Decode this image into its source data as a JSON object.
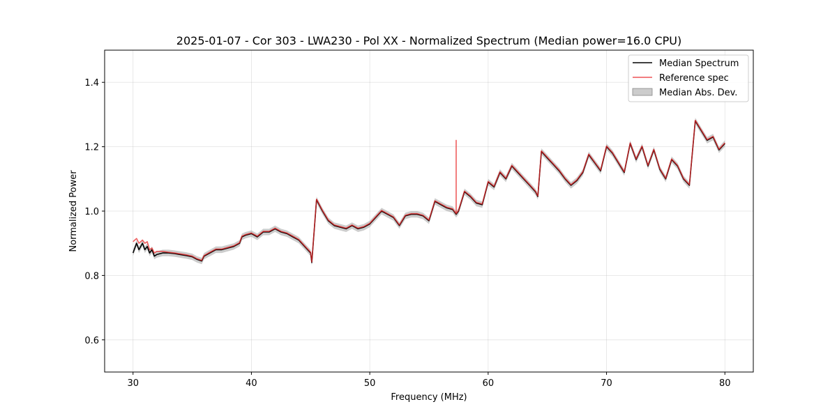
{
  "chart_data": {
    "type": "line",
    "title": "2025-01-07 - Cor 303 - LWA230 - Pol XX - Normalized Spectrum (Median power=16.0 CPU)",
    "xlabel": "Frequency (MHz)",
    "ylabel": "Normalized Power",
    "xlim": [
      27.6,
      82.4
    ],
    "ylim": [
      0.5,
      1.5
    ],
    "xticks": [
      30,
      40,
      50,
      60,
      70,
      80
    ],
    "xtick_labels": [
      "30",
      "40",
      "50",
      "60",
      "70",
      "80"
    ],
    "yticks": [
      0.6,
      0.8,
      1.0,
      1.2,
      1.4
    ],
    "ytick_labels": [
      "0.6",
      "0.8",
      "1.0",
      "1.2",
      "1.4"
    ],
    "grid": true,
    "legend_position": "top-right",
    "mad_band": 0.01,
    "series": [
      {
        "name": "Median Spectrum",
        "color": "#000000",
        "x": [
          30.0,
          30.3,
          30.5,
          30.8,
          31.0,
          31.2,
          31.4,
          31.6,
          31.8,
          32.0,
          32.5,
          33.0,
          33.5,
          34.0,
          34.5,
          35.0,
          35.4,
          35.8,
          36.0,
          36.5,
          37.0,
          37.5,
          38.0,
          38.5,
          39.0,
          39.2,
          39.5,
          40.0,
          40.5,
          41.0,
          41.5,
          42.0,
          42.5,
          43.0,
          43.5,
          44.0,
          44.5,
          45.0,
          45.1,
          45.5,
          46.0,
          46.5,
          47.0,
          47.5,
          48.0,
          48.5,
          49.0,
          49.5,
          50.0,
          50.5,
          51.0,
          51.5,
          52.0,
          52.5,
          53.0,
          53.5,
          54.0,
          54.5,
          55.0,
          55.5,
          56.0,
          56.5,
          57.0,
          57.3,
          57.5,
          58.0,
          58.5,
          59.0,
          59.5,
          60.0,
          60.5,
          61.0,
          61.5,
          62.0,
          62.5,
          63.0,
          63.5,
          64.0,
          64.2,
          64.5,
          65.0,
          65.5,
          66.0,
          66.5,
          67.0,
          67.5,
          68.0,
          68.5,
          69.0,
          69.5,
          70.0,
          70.5,
          71.0,
          71.5,
          72.0,
          72.5,
          73.0,
          73.5,
          74.0,
          74.5,
          75.0,
          75.5,
          76.0,
          76.5,
          77.0,
          77.5,
          78.0,
          78.5,
          79.0,
          79.5,
          80.0
        ],
        "values": [
          0.87,
          0.9,
          0.88,
          0.9,
          0.88,
          0.89,
          0.87,
          0.88,
          0.86,
          0.865,
          0.87,
          0.87,
          0.868,
          0.865,
          0.862,
          0.858,
          0.85,
          0.845,
          0.86,
          0.87,
          0.88,
          0.88,
          0.885,
          0.89,
          0.9,
          0.92,
          0.925,
          0.93,
          0.92,
          0.935,
          0.935,
          0.945,
          0.935,
          0.93,
          0.92,
          0.91,
          0.89,
          0.87,
          0.84,
          1.035,
          1.0,
          0.97,
          0.955,
          0.95,
          0.945,
          0.955,
          0.945,
          0.95,
          0.96,
          0.98,
          1.0,
          0.99,
          0.98,
          0.955,
          0.985,
          0.99,
          0.99,
          0.985,
          0.97,
          1.03,
          1.02,
          1.01,
          1.005,
          0.99,
          1.0,
          1.06,
          1.045,
          1.025,
          1.02,
          1.09,
          1.075,
          1.12,
          1.1,
          1.14,
          1.12,
          1.1,
          1.08,
          1.06,
          1.045,
          1.185,
          1.165,
          1.145,
          1.125,
          1.1,
          1.08,
          1.095,
          1.12,
          1.175,
          1.15,
          1.125,
          1.2,
          1.18,
          1.15,
          1.12,
          1.21,
          1.16,
          1.2,
          1.14,
          1.19,
          1.13,
          1.1,
          1.16,
          1.14,
          1.1,
          1.08,
          1.28,
          1.25,
          1.22,
          1.23,
          1.19,
          1.21
        ]
      },
      {
        "name": "Reference spec",
        "color": "#e8282a",
        "x": [
          30.0,
          30.3,
          30.5,
          30.8,
          31.0,
          31.2,
          31.4,
          31.6,
          31.8,
          32.0,
          32.5,
          33.0,
          33.5,
          34.0,
          34.5,
          35.0,
          35.4,
          35.8,
          36.0,
          36.5,
          37.0,
          37.5,
          38.0,
          38.5,
          39.0,
          39.2,
          39.5,
          40.0,
          40.5,
          41.0,
          41.5,
          42.0,
          42.5,
          43.0,
          43.5,
          44.0,
          44.5,
          45.0,
          45.1,
          45.5,
          46.0,
          46.5,
          47.0,
          47.5,
          48.0,
          48.5,
          49.0,
          49.5,
          50.0,
          50.5,
          51.0,
          51.5,
          52.0,
          52.5,
          53.0,
          53.5,
          54.0,
          54.5,
          55.0,
          55.5,
          56.0,
          56.5,
          57.0,
          57.3,
          57.3,
          57.3,
          57.5,
          58.0,
          58.5,
          59.0,
          59.5,
          60.0,
          60.5,
          61.0,
          61.5,
          62.0,
          62.5,
          63.0,
          63.5,
          64.0,
          64.2,
          64.5,
          65.0,
          65.5,
          66.0,
          66.5,
          67.0,
          67.5,
          68.0,
          68.5,
          69.0,
          69.5,
          70.0,
          70.5,
          71.0,
          71.5,
          72.0,
          72.5,
          73.0,
          73.5,
          74.0,
          74.5,
          75.0,
          75.5,
          76.0,
          76.5,
          77.0,
          77.5,
          78.0,
          78.5,
          79.0,
          79.5,
          80.0
        ],
        "values": [
          0.905,
          0.915,
          0.9,
          0.91,
          0.9,
          0.905,
          0.88,
          0.885,
          0.87,
          0.875,
          0.875,
          0.872,
          0.87,
          0.867,
          0.864,
          0.86,
          0.852,
          0.847,
          0.862,
          0.872,
          0.882,
          0.882,
          0.887,
          0.892,
          0.902,
          0.922,
          0.927,
          0.932,
          0.922,
          0.937,
          0.937,
          0.947,
          0.937,
          0.932,
          0.922,
          0.912,
          0.892,
          0.872,
          0.842,
          1.037,
          1.002,
          0.972,
          0.957,
          0.952,
          0.947,
          0.957,
          0.947,
          0.952,
          0.962,
          0.982,
          1.002,
          0.992,
          0.982,
          0.957,
          0.987,
          0.992,
          0.992,
          0.987,
          0.972,
          1.032,
          1.022,
          1.012,
          1.007,
          0.992,
          1.22,
          0.992,
          1.002,
          1.062,
          1.047,
          1.027,
          1.022,
          1.092,
          1.077,
          1.122,
          1.102,
          1.142,
          1.122,
          1.102,
          1.082,
          1.062,
          1.047,
          1.187,
          1.167,
          1.147,
          1.127,
          1.102,
          1.082,
          1.097,
          1.122,
          1.177,
          1.152,
          1.127,
          1.202,
          1.182,
          1.152,
          1.122,
          1.212,
          1.162,
          1.202,
          1.142,
          1.192,
          1.132,
          1.102,
          1.162,
          1.142,
          1.102,
          1.082,
          1.282,
          1.252,
          1.222,
          1.232,
          1.192,
          1.212
        ]
      }
    ],
    "legend": [
      {
        "label": "Median Spectrum",
        "kind": "line",
        "color": "#000000"
      },
      {
        "label": "Reference spec",
        "kind": "line",
        "color": "#e8282a"
      },
      {
        "label": "Median Abs. Dev.",
        "kind": "patch",
        "color": "#aaaaaa"
      }
    ]
  }
}
